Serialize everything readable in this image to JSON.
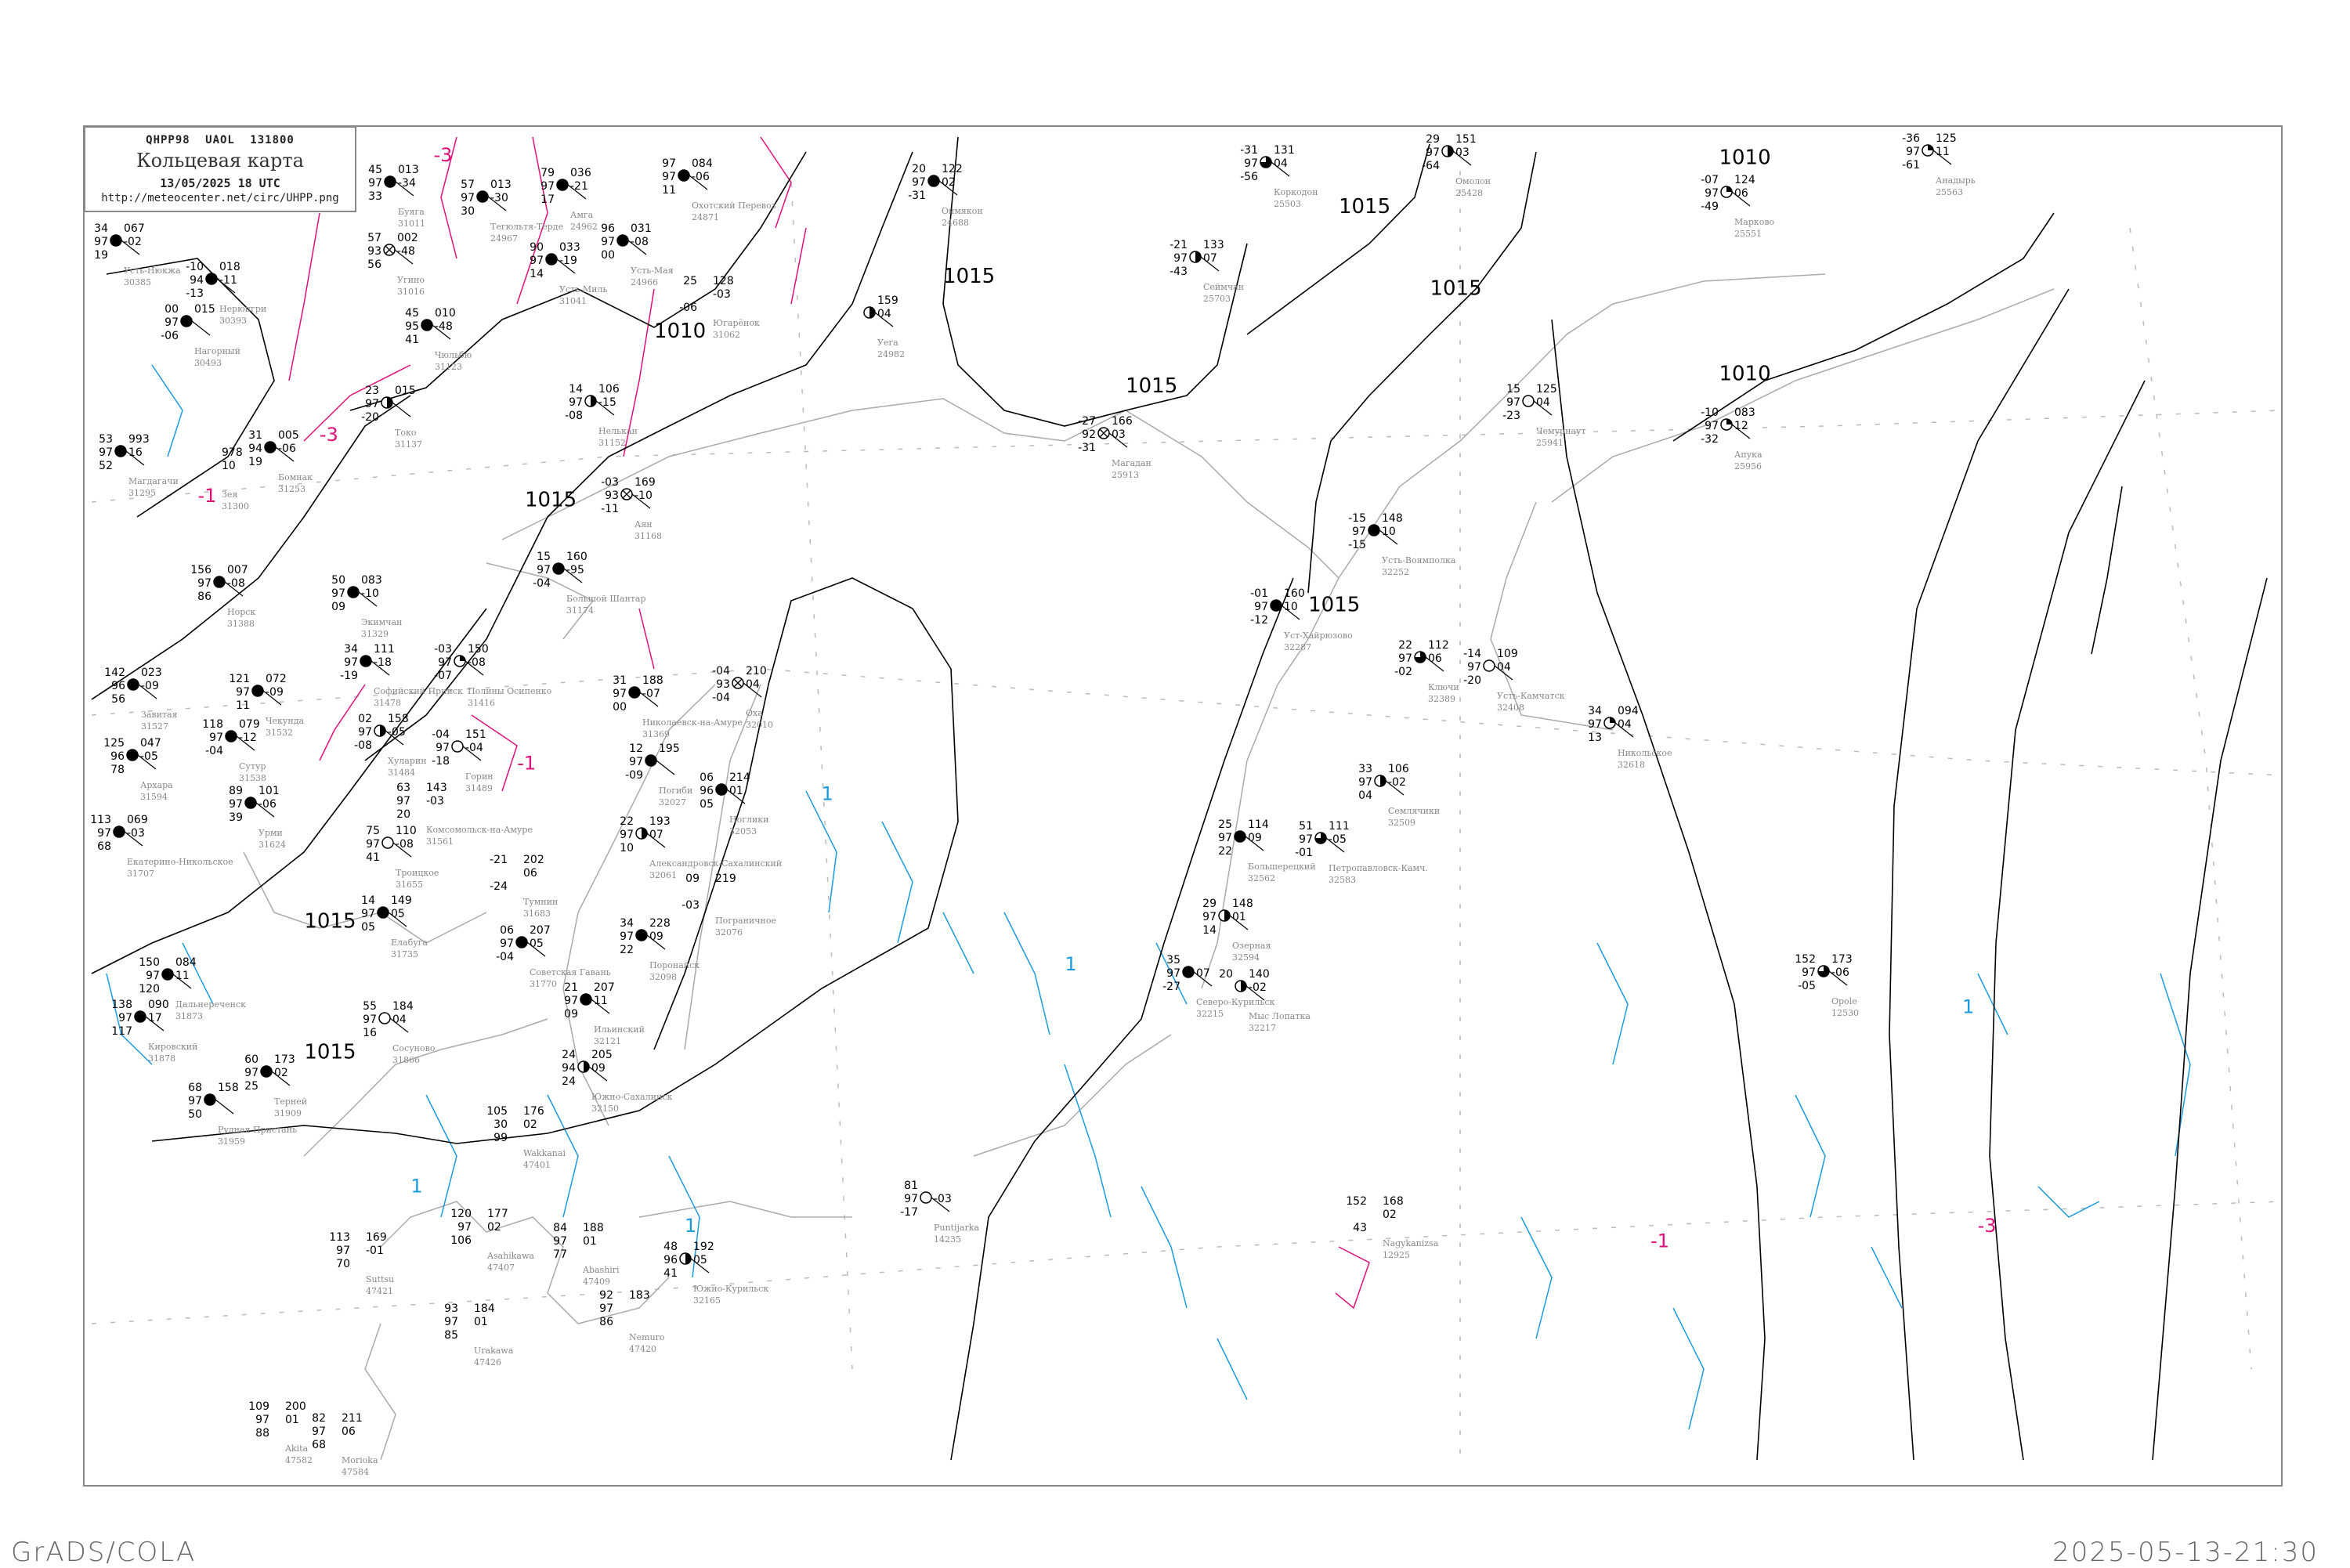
{
  "header": {
    "code": "QHPP98 UAOL 131800",
    "title": "Кольцевая карта",
    "datetime": "13/05/2025 18 UTC",
    "url": "http://meteocenter.net/circ/UHPP.png"
  },
  "footer": {
    "left": "GrADS/COLA",
    "right": "2025-05-13-21:30"
  },
  "colors": {
    "isobar": "#000000",
    "coast": "#aaaaaa",
    "isotherm_cold": "#e0107a",
    "isotherm_warm": "#1a9be0",
    "frame": "#888888",
    "station_name": "#888888",
    "fog_marker": "#ffff33",
    "precip_marker": "#22cc44",
    "snow_marker": "#3399ff"
  },
  "isobar_labels": [
    "1010",
    "1015",
    "1015",
    "1015",
    "1015",
    "1015",
    "1015",
    "1015",
    "1010",
    "1010",
    "1015"
  ],
  "isotherm_labels": [
    "-3",
    "-3",
    "-1",
    "-1",
    "1",
    "1",
    "1",
    "1",
    "-1",
    "-3",
    "1"
  ],
  "stations": [
    {
      "name": "Усть-Нюкжа",
      "id": "30385",
      "t": "34",
      "vv": "97",
      "td": "19",
      "p": "067",
      "pp": "-02",
      "cover": "full"
    },
    {
      "name": "Нерюнгри",
      "id": "30393",
      "t": "-10",
      "vv": "94",
      "td": "-13",
      "p": "018",
      "pp": "-11",
      "cover": "full"
    },
    {
      "name": "Нагорный",
      "id": "30493",
      "t": "00",
      "vv": "97",
      "td": "-06",
      "p": "015",
      "cover": "full"
    },
    {
      "name": "Буяга",
      "id": "31011",
      "t": "45",
      "vv": "97",
      "td": "33",
      "p": "013",
      "pp": "-34",
      "cover": "full"
    },
    {
      "name": "Тегюльтя-Терде",
      "id": "24967",
      "t": "57",
      "vv": "97",
      "td": "30",
      "p": "013",
      "pp": "-30",
      "cover": "full"
    },
    {
      "name": "Амга",
      "id": "24962",
      "t": "79",
      "vv": "97",
      "td": "17",
      "p": "036",
      "pp": "-21",
      "cover": "full"
    },
    {
      "name": "Охотский Перевоз",
      "id": "24871",
      "t": "97",
      "vv": "97",
      "td": "11",
      "p": "084",
      "pp": "-06",
      "cover": "full"
    },
    {
      "name": "Угино",
      "id": "31016",
      "t": "57",
      "vv": "93",
      "td": "56",
      "p": "002",
      "pp": "-48",
      "cover": "obscured"
    },
    {
      "name": "Усть-Мая",
      "id": "24966",
      "t": "96",
      "vv": "97",
      "td": "00",
      "p": "031",
      "pp": "-08",
      "cover": "full"
    },
    {
      "name": "Усть-Миль",
      "id": "31041",
      "t": "90",
      "vv": "97",
      "td": "14",
      "p": "033",
      "pp": "-19",
      "cover": "full"
    },
    {
      "name": "Чюльбю",
      "id": "31123",
      "t": "45",
      "vv": "95",
      "td": "41",
      "p": "010",
      "pp": "-48",
      "cover": "full"
    },
    {
      "name": "Югарёнок",
      "id": "31062",
      "t": "25",
      "td": "-06",
      "p": "128",
      "pp": "-03",
      "cover": "none"
    },
    {
      "name": "Токо",
      "id": "31137",
      "t": "23",
      "vv": "97",
      "td": "-20",
      "p": "015",
      "cover": "half"
    },
    {
      "name": "Нелькан",
      "id": "31152",
      "t": "14",
      "vv": "97",
      "td": "-08",
      "p": "106",
      "pp": "-15",
      "cover": "half"
    },
    {
      "name": "Магдагачи",
      "id": "31295",
      "t": "53",
      "vv": "97",
      "td": "52",
      "p": "993",
      "pp": "16",
      "cover": "full"
    },
    {
      "name": "Зея",
      "id": "31300",
      "p": "978",
      "pp": "10",
      "cover": "none"
    },
    {
      "name": "Бомнак",
      "id": "31253",
      "t": "31",
      "vv": "94",
      "td": "19",
      "p": "005",
      "pp": "-06",
      "cover": "full"
    },
    {
      "name": "Аян",
      "id": "31168",
      "t": "-03",
      "vv": "93",
      "td": "-11",
      "p": "169",
      "pp": "-10",
      "cover": "obscured"
    },
    {
      "name": "Норск",
      "id": "31388",
      "t": "156",
      "vv": "97",
      "td": "86",
      "p": "007",
      "pp": "-08",
      "cover": "full"
    },
    {
      "name": "Экимчан",
      "id": "31329",
      "t": "50",
      "vv": "97",
      "td": "09",
      "p": "083",
      "pp": "-10",
      "cover": "full"
    },
    {
      "name": "Большой Шантар",
      "id": "31174",
      "t": "15",
      "vv": "97",
      "td": "-04",
      "p": "160",
      "pp": "-95",
      "cover": "full"
    },
    {
      "name": "Софийский Прииск",
      "id": "31478",
      "t": "34",
      "vv": "97",
      "td": "-19",
      "p": "111",
      "pp": "-18",
      "cover": "full"
    },
    {
      "name": "Полины Осипенко",
      "id": "31416",
      "t": "-03",
      "vv": "97",
      "td": "-07",
      "p": "150",
      "pp": "-08",
      "cover": "quarter"
    },
    {
      "name": "Завитая",
      "id": "31527",
      "t": "142",
      "vv": "96",
      "td": "56",
      "p": "023",
      "pp": "-09",
      "cover": "full"
    },
    {
      "name": "Чекунда",
      "id": "31532",
      "t": "121",
      "vv": "97",
      "td": "11",
      "p": "072",
      "pp": "-09",
      "cover": "full"
    },
    {
      "name": "Архара",
      "id": "31594",
      "t": "125",
      "vv": "96",
      "td": "78",
      "p": "047",
      "pp": "-05",
      "cover": "full"
    },
    {
      "name": "Сутур",
      "id": "31538",
      "t": "118",
      "vv": "97",
      "td": "-04",
      "p": "079",
      "pp": "-12",
      "cover": "full"
    },
    {
      "name": "Хуларин",
      "id": "31484",
      "t": "02",
      "vv": "97",
      "td": "-08",
      "p": "158",
      "pp": "-05",
      "cover": "half"
    },
    {
      "name": "Горин",
      "id": "31489",
      "t": "-04",
      "vv": "97",
      "td": "-18",
      "p": "151",
      "pp": "-04",
      "cover": "empty"
    },
    {
      "name": "Урми",
      "id": "31624",
      "t": "89",
      "vv": "97",
      "td": "39",
      "p": "101",
      "pp": "-06",
      "cover": "full"
    },
    {
      "name": "Комсомольск-на-Амуре",
      "id": "31561",
      "t": "63",
      "vv": "97",
      "td": "20",
      "p": "143",
      "pp": "-03",
      "cover": "none"
    },
    {
      "name": "Екатерино-Никольское",
      "id": "31707",
      "t": "113",
      "vv": "97",
      "td": "68",
      "p": "069",
      "pp": "-03",
      "cover": "full"
    },
    {
      "name": "Троицкое",
      "id": "31655",
      "t": "75",
      "vv": "97",
      "td": "41",
      "p": "110",
      "pp": "-08",
      "cover": "empty"
    },
    {
      "name": "Елабуга",
      "id": "31735",
      "t": "14",
      "vv": "97",
      "td": "05",
      "p": "149",
      "pp": "05",
      "cover": "full"
    },
    {
      "name": "Николаевск-на-Амуре",
      "id": "31369",
      "t": "31",
      "vv": "97",
      "td": "00",
      "p": "188",
      "pp": "-07",
      "cover": "full"
    },
    {
      "name": "Оха",
      "id": "32010",
      "t": "-04",
      "vv": "93",
      "td": "-04",
      "p": "210",
      "pp": "04",
      "cover": "obscured"
    },
    {
      "name": "Погиби",
      "id": "32027",
      "t": "12",
      "vv": "97",
      "td": "-09",
      "p": "195",
      "cover": "full"
    },
    {
      "name": "Ноглики",
      "id": "32053",
      "t": "06",
      "vv": "96",
      "td": "05",
      "p": "214",
      "pp": "01",
      "cover": "full"
    },
    {
      "name": "Александровск-Сахалинский",
      "id": "32061",
      "t": "22",
      "vv": "97",
      "td": "10",
      "p": "193",
      "pp": "07",
      "cover": "half"
    },
    {
      "name": "Пограничное",
      "id": "32076",
      "t": "09",
      "td": "-03",
      "p": "219",
      "cover": "none"
    },
    {
      "name": "Тумнин",
      "id": "31683",
      "t": "-21",
      "td": "-24",
      "p": "202",
      "pp": "06",
      "cover": "none"
    },
    {
      "name": "Советская Гавань",
      "id": "31770",
      "t": "06",
      "vv": "97",
      "td": "-04",
      "p": "207",
      "pp": "05",
      "cover": "full"
    },
    {
      "name": "Поронайск",
      "id": "32098",
      "t": "34",
      "vv": "97",
      "td": "22",
      "p": "228",
      "pp": "09",
      "cover": "full"
    },
    {
      "name": "Дальнереченск",
      "id": "31873",
      "t": "150",
      "vv": "97",
      "td": "120",
      "p": "084",
      "pp": "11",
      "cover": "full"
    },
    {
      "name": "Кировский",
      "id": "31878",
      "t": "138",
      "vv": "97",
      "td": "117",
      "p": "090",
      "pp": "17",
      "cover": "full"
    },
    {
      "name": "Сосуново",
      "id": "31866",
      "t": "55",
      "vv": "97",
      "td": "16",
      "p": "184",
      "pp": "04",
      "cover": "empty"
    },
    {
      "name": "Терней",
      "id": "31909",
      "t": "60",
      "vv": "97",
      "td": "25",
      "p": "173",
      "pp": "02",
      "cover": "full"
    },
    {
      "name": "Рудная Пристань",
      "id": "31959",
      "t": "68",
      "vv": "97",
      "td": "50",
      "p": "158",
      "cover": "full"
    },
    {
      "name": "Ильинский",
      "id": "32121",
      "t": "21",
      "vv": "97",
      "td": "09",
      "p": "207",
      "pp": "11",
      "cover": "full"
    },
    {
      "name": "Южно-Сахалинск",
      "id": "32150",
      "t": "24",
      "vv": "94",
      "td": "24",
      "p": "205",
      "pp": "09",
      "cover": "half"
    },
    {
      "name": "Южно-Курильск",
      "id": "32165",
      "t": "48",
      "vv": "96",
      "td": "41",
      "p": "192",
      "pp": "05",
      "cover": "half"
    },
    {
      "name": "Wakkanai",
      "id": "47401",
      "t": "105",
      "vv": "30",
      "td": "99",
      "p": "176",
      "pp": "02",
      "cover": "none"
    },
    {
      "name": "Asahikawa",
      "id": "47407",
      "t": "120",
      "vv": "97",
      "td": "106",
      "p": "177",
      "pp": "02",
      "cover": "none"
    },
    {
      "name": "Abashiri",
      "id": "47409",
      "t": "84",
      "vv": "97",
      "td": "77",
      "p": "188",
      "pp": "01",
      "cover": "none"
    },
    {
      "name": "Nemuro",
      "id": "47420",
      "t": "92",
      "vv": "97",
      "td": "86",
      "p": "183",
      "cover": "none"
    },
    {
      "name": "Suttsu",
      "id": "47421",
      "t": "113",
      "vv": "97",
      "td": "70",
      "p": "169",
      "pp": "-01",
      "cover": "none"
    },
    {
      "name": "Urakawa",
      "id": "47426",
      "t": "93",
      "vv": "97",
      "td": "85",
      "p": "184",
      "pp": "01",
      "cover": "none"
    },
    {
      "name": "Akita",
      "id": "47582",
      "t": "109",
      "vv": "97",
      "td": "88",
      "p": "200",
      "pp": "01",
      "cover": "none"
    },
    {
      "name": "Morioka",
      "id": "47584",
      "t": "82",
      "vv": "97",
      "td": "68",
      "p": "211",
      "pp": "06",
      "cover": "none"
    },
    {
      "name": "Оймякон",
      "id": "24688",
      "t": "20",
      "vv": "97",
      "td": "-31",
      "p": "122",
      "pp": "02",
      "cover": "full"
    },
    {
      "name": "Коркодон",
      "id": "25503",
      "t": "-31",
      "vv": "97",
      "td": "-56",
      "p": "131",
      "pp": "04",
      "cover": "threequarter"
    },
    {
      "name": "Сеймчан",
      "id": "25703",
      "t": "-21",
      "vv": "97",
      "td": "-43",
      "p": "133",
      "pp": "07",
      "cover": "half"
    },
    {
      "name": "Магадан",
      "id": "25913",
      "t": "-27",
      "vv": "92",
      "td": "-31",
      "p": "166",
      "pp": "03",
      "cover": "obscured"
    },
    {
      "name": "Уега",
      "id": "24982",
      "p": "159",
      "pp": "04",
      "cover": "half"
    },
    {
      "name": "Омолон",
      "id": "25428",
      "t": "29",
      "vv": "97",
      "td": "-64",
      "p": "151",
      "pp": "03",
      "cover": "half"
    },
    {
      "name": "Марково",
      "id": "25551",
      "t": "-07",
      "vv": "97",
      "td": "-49",
      "p": "124",
      "pp": "06",
      "cover": "quarter"
    },
    {
      "name": "Анадырь",
      "id": "25563",
      "t": "-36",
      "vv": "97",
      "td": "-61",
      "p": "125",
      "pp": "11",
      "cover": "quarter"
    },
    {
      "name": "Чемурнаут",
      "id": "25941",
      "t": "15",
      "vv": "97",
      "td": "-23",
      "p": "125",
      "pp": "04",
      "cover": "empty"
    },
    {
      "name": "Апука",
      "id": "25956",
      "t": "-10",
      "vv": "97",
      "td": "-32",
      "p": "083",
      "pp": "12",
      "cover": "quarter"
    },
    {
      "name": "Усть-Воямполка",
      "id": "32252",
      "t": "-15",
      "vv": "97",
      "td": "-15",
      "p": "148",
      "pp": "10",
      "cover": "full"
    },
    {
      "name": "Уст-Хайрюзово",
      "id": "32287",
      "t": "-01",
      "vv": "97",
      "td": "-12",
      "p": "160",
      "pp": "10",
      "cover": "full"
    },
    {
      "name": "Ключи",
      "id": "32389",
      "t": "22",
      "vv": "97",
      "td": "-02",
      "p": "112",
      "pp": "06",
      "cover": "threequarter"
    },
    {
      "name": "Усть-Камчатск",
      "id": "32408",
      "t": "-14",
      "vv": "97",
      "td": "-20",
      "p": "109",
      "pp": "04",
      "cover": "empty"
    },
    {
      "name": "Никольское",
      "id": "32618",
      "t": "34",
      "vv": "97",
      "td": "13",
      "p": "094",
      "pp": "04",
      "cover": "quarter"
    },
    {
      "name": "Семлячики",
      "id": "32509",
      "t": "33",
      "vv": "97",
      "td": "04",
      "p": "106",
      "pp": "-02",
      "cover": "half"
    },
    {
      "name": "Большерецкий",
      "id": "32562",
      "t": "25",
      "vv": "97",
      "td": "22",
      "p": "114",
      "pp": "09",
      "cover": "full"
    },
    {
      "name": "Петропавловск-Камч.",
      "id": "32583",
      "t": "51",
      "vv": "97",
      "td": "-01",
      "p": "111",
      "pp": "-05",
      "cover": "threequarter"
    },
    {
      "name": "Озерная",
      "id": "32594",
      "t": "29",
      "vv": "97",
      "td": "14",
      "p": "148",
      "pp": "01",
      "cover": "half"
    },
    {
      "name": "Мыс Лопатка",
      "id": "32217",
      "t": "20",
      "p": "140",
      "pp": "-02",
      "cover": "half"
    },
    {
      "name": "Северо-Курильск",
      "id": "32215",
      "t": "35",
      "vv": "97",
      "td": "-27",
      "pp": "07",
      "cover": "full"
    },
    {
      "name": "Puntijarka",
      "id": "14235",
      "t": "81",
      "vv": "97",
      "td": "-17",
      "pp": "-03",
      "cover": "empty"
    },
    {
      "name": "Nagykanizsa",
      "id": "12925",
      "t": "152",
      "td": "43",
      "p": "168",
      "pp": "02",
      "cover": "none"
    },
    {
      "name": "Opole",
      "id": "12530",
      "t": "152",
      "vv": "97",
      "td": "-05",
      "p": "173",
      "pp": "-06",
      "cover": "threequarter"
    }
  ]
}
